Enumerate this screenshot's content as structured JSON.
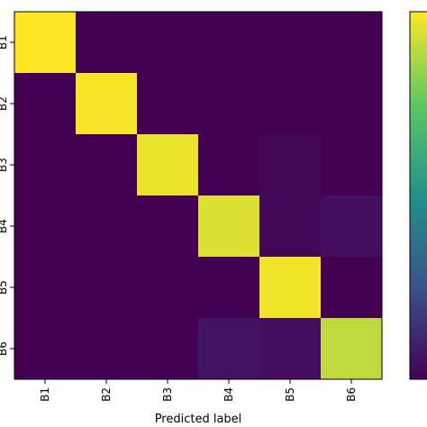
{
  "chart_data": {
    "type": "heatmap",
    "title": "",
    "xlabel": "Predicted label",
    "ylabel": "",
    "x_categories": [
      "B1",
      "B2",
      "B3",
      "B4",
      "B5",
      "B6"
    ],
    "y_categories": [
      "B1",
      "B2",
      "B3",
      "B4",
      "B5",
      "B6"
    ],
    "values": [
      [
        1.0,
        0.0,
        0.0,
        0.0,
        0.0,
        0.0
      ],
      [
        0.0,
        0.99,
        0.0,
        0.0,
        0.0,
        0.0
      ],
      [
        0.0,
        0.0,
        0.97,
        0.0,
        0.02,
        0.0
      ],
      [
        0.0,
        0.0,
        0.0,
        0.95,
        0.02,
        0.04
      ],
      [
        0.0,
        0.0,
        0.0,
        0.0,
        0.98,
        0.0
      ],
      [
        0.0,
        0.0,
        0.0,
        0.06,
        0.04,
        0.9
      ]
    ],
    "colormap": "viridis",
    "value_range": [
      0,
      1
    ],
    "colorbar": true,
    "grid": false
  }
}
